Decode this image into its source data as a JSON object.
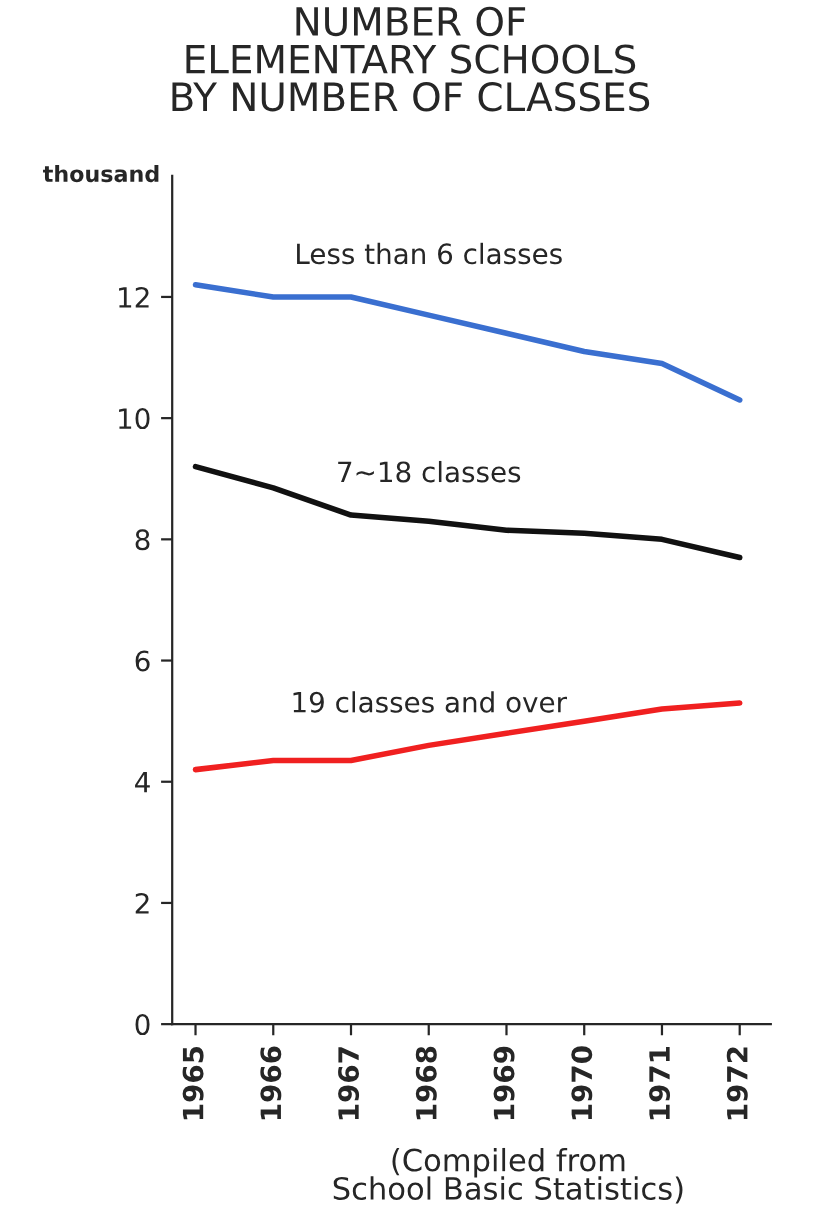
{
  "chart_data": {
    "type": "line",
    "title": "NUMBER OF\nELEMENTARY SCHOOLS\nBY NUMBER OF CLASSES",
    "ylabel": "thousand",
    "categories": [
      "1965",
      "1966",
      "1967",
      "1968",
      "1969",
      "1970",
      "1971",
      "1972"
    ],
    "series": [
      {
        "name": "Less than 6 classes",
        "color": "#3a6fd0",
        "values": [
          12.2,
          12.0,
          12.0,
          11.7,
          11.4,
          11.1,
          10.9,
          10.3
        ]
      },
      {
        "name": "7∼18 classes",
        "color": "#111111",
        "values": [
          9.2,
          8.85,
          8.4,
          8.3,
          8.15,
          8.1,
          8.0,
          7.7
        ]
      },
      {
        "name": "19 classes and over",
        "color": "#f02020",
        "values": [
          4.2,
          4.35,
          4.35,
          4.6,
          4.8,
          5.0,
          5.2,
          5.3
        ]
      }
    ],
    "ylim": [
      0,
      14
    ],
    "yticks": [
      0,
      2,
      4,
      6,
      8,
      10,
      12
    ],
    "grid": false,
    "legend": false,
    "marker": "none",
    "line_style": "solid",
    "annotations": [
      "(Compiled from\nSchool Basic Statistics)"
    ]
  }
}
